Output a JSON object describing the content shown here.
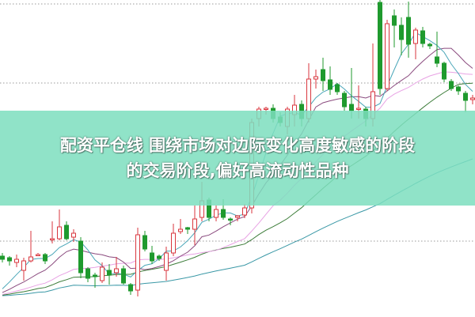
{
  "banner": {
    "line1": "配资平仓线 围绕市场对边际变化高度敏感的阶段",
    "line2": "的交易阶段,偏好高流动性品种"
  },
  "colors": {
    "up": "#d9363e",
    "down": "#1f9a2e",
    "ma5": "#4aa6b8",
    "ma10": "#8a4a7e",
    "ma20": "#e8a2e4",
    "ma30": "#3d7d3a",
    "ma60": "#3a98a6",
    "grid": "#9a9a9a",
    "banner": "#7ddebe"
  },
  "chart_data": {
    "type": "candlestick",
    "title": "",
    "grid": "dotted horizontal",
    "moving_averages": [
      5,
      10,
      20,
      30,
      60
    ],
    "ohlc": [
      [
        76,
        80,
        68,
        72
      ],
      [
        74,
        76,
        64,
        70
      ],
      [
        68,
        78,
        62,
        72
      ],
      [
        58,
        74,
        45,
        70
      ],
      [
        70,
        108,
        68,
        75
      ],
      [
        77,
        80,
        76,
        78
      ],
      [
        78,
        80,
        66,
        70
      ],
      [
        97,
        120,
        92,
        98
      ],
      [
        98,
        135,
        96,
        113
      ],
      [
        115,
        120,
        96,
        98
      ],
      [
        100,
        110,
        94,
        105
      ],
      [
        95,
        100,
        48,
        55
      ],
      [
        60,
        62,
        43,
        48
      ],
      [
        52,
        55,
        36,
        50
      ],
      [
        45,
        68,
        42,
        62
      ],
      [
        58,
        66,
        40,
        52
      ],
      [
        55,
        75,
        50,
        60
      ],
      [
        60,
        64,
        40,
        42
      ],
      [
        40,
        42,
        27,
        32
      ],
      [
        33,
        112,
        25,
        103
      ],
      [
        102,
        108,
        82,
        85
      ],
      [
        80,
        89,
        66,
        70
      ],
      [
        76,
        78,
        70,
        73
      ],
      [
        58,
        88,
        45,
        80
      ],
      [
        80,
        117,
        76,
        105
      ],
      [
        107,
        123,
        104,
        110
      ],
      [
        112,
        113,
        104,
        110
      ],
      [
        110,
        140,
        90,
        123
      ],
      [
        125,
        170,
        120,
        146
      ],
      [
        147,
        150,
        120,
        125
      ],
      [
        125,
        140,
        120,
        135
      ],
      [
        135,
        148,
        122,
        125
      ],
      [
        123,
        125,
        115,
        122
      ],
      [
        125,
        128,
        120,
        127
      ],
      [
        128,
        142,
        124,
        137
      ],
      [
        137,
        250,
        130,
        245
      ],
      [
        250,
        265,
        240,
        262
      ],
      [
        262,
        265,
        255,
        263
      ],
      [
        263,
        268,
        245,
        250
      ],
      [
        252,
        258,
        240,
        245
      ],
      [
        240,
        265,
        230,
        262
      ],
      [
        255,
        280,
        240,
        267
      ],
      [
        268,
        273,
        240,
        250
      ],
      [
        250,
        320,
        245,
        300
      ],
      [
        300,
        312,
        288,
        303
      ],
      [
        312,
        327,
        285,
        298
      ],
      [
        299,
        316,
        280,
        287
      ],
      [
        293,
        295,
        280,
        284
      ],
      [
        282,
        285,
        260,
        265
      ],
      [
        268,
        314,
        250,
        260
      ],
      [
        262,
        292,
        250,
        263
      ],
      [
        262,
        265,
        240,
        250
      ],
      [
        250,
        345,
        240,
        284
      ],
      [
        397,
        400,
        280,
        288
      ],
      [
        288,
        375,
        285,
        370
      ],
      [
        380,
        388,
        340,
        368
      ],
      [
        368,
        378,
        330,
        350
      ],
      [
        378,
        398,
        327,
        344
      ],
      [
        345,
        365,
        325,
        362
      ],
      [
        361,
        366,
        340,
        345
      ],
      [
        344,
        346,
        338,
        342
      ],
      [
        328,
        360,
        315,
        320
      ],
      [
        320,
        322,
        296,
        300
      ],
      [
        297,
        300,
        285,
        288
      ],
      [
        290,
        292,
        280,
        285
      ],
      [
        282,
        285,
        258,
        273
      ],
      [
        274,
        280,
        268,
        276
      ]
    ]
  }
}
